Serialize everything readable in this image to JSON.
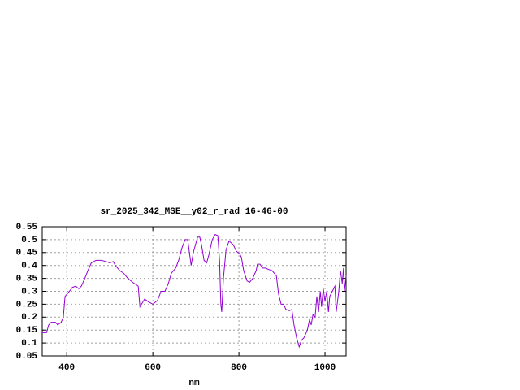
{
  "chart_data": {
    "type": "line",
    "title": "sr_2025_342_MSE__y02_r_rad 16-46-00",
    "x_label": "nm",
    "x": [
      343,
      353,
      358,
      364,
      374,
      379,
      387,
      392,
      396,
      406,
      413,
      421,
      428,
      434,
      442,
      449,
      457,
      468,
      481,
      491,
      500,
      508,
      513,
      523,
      532,
      542,
      553,
      566,
      570,
      581,
      589,
      600,
      611,
      619,
      628,
      636,
      643,
      653,
      660,
      668,
      675,
      681,
      689,
      694,
      704,
      709,
      713,
      719,
      725,
      730,
      738,
      745,
      751,
      755,
      758,
      760,
      764,
      770,
      777,
      787,
      794,
      802,
      806,
      811,
      819,
      825,
      832,
      840,
      843,
      849,
      855,
      862,
      868,
      877,
      887,
      892,
      898,
      904,
      909,
      917,
      923,
      928,
      934,
      940,
      945,
      951,
      959,
      964,
      968,
      972,
      977,
      981,
      985,
      989,
      992,
      996,
      1000,
      1004,
      1008,
      1011,
      1017,
      1023,
      1026,
      1032,
      1036,
      1040,
      1043,
      1045,
      1049
    ],
    "series": [
      {
        "color": "#9400d3",
        "values": [
          0.14,
          0.14,
          0.17,
          0.18,
          0.18,
          0.17,
          0.18,
          0.2,
          0.28,
          0.3,
          0.315,
          0.32,
          0.31,
          0.32,
          0.35,
          0.38,
          0.41,
          0.42,
          0.42,
          0.415,
          0.41,
          0.415,
          0.4,
          0.38,
          0.37,
          0.35,
          0.335,
          0.32,
          0.24,
          0.27,
          0.26,
          0.25,
          0.265,
          0.3,
          0.3,
          0.33,
          0.37,
          0.39,
          0.42,
          0.47,
          0.5,
          0.5,
          0.4,
          0.45,
          0.51,
          0.51,
          0.48,
          0.42,
          0.41,
          0.44,
          0.5,
          0.52,
          0.515,
          0.42,
          0.25,
          0.22,
          0.35,
          0.46,
          0.495,
          0.48,
          0.455,
          0.445,
          0.43,
          0.38,
          0.34,
          0.335,
          0.35,
          0.38,
          0.405,
          0.405,
          0.39,
          0.39,
          0.385,
          0.38,
          0.36,
          0.29,
          0.25,
          0.25,
          0.23,
          0.225,
          0.23,
          0.17,
          0.12,
          0.085,
          0.11,
          0.12,
          0.15,
          0.19,
          0.17,
          0.21,
          0.2,
          0.28,
          0.22,
          0.3,
          0.24,
          0.31,
          0.26,
          0.3,
          0.22,
          0.28,
          0.3,
          0.32,
          0.22,
          0.3,
          0.38,
          0.33,
          0.39,
          0.3,
          0.36
        ]
      }
    ],
    "xlim": [
      343,
      1049
    ],
    "xticks": [
      400,
      600,
      800,
      1000
    ],
    "ylim": [
      0.05,
      0.55
    ],
    "yticks": [
      0.05,
      0.1,
      0.15,
      0.2,
      0.25,
      0.3,
      0.35,
      0.4,
      0.45,
      0.5,
      0.55
    ],
    "grid": true
  }
}
